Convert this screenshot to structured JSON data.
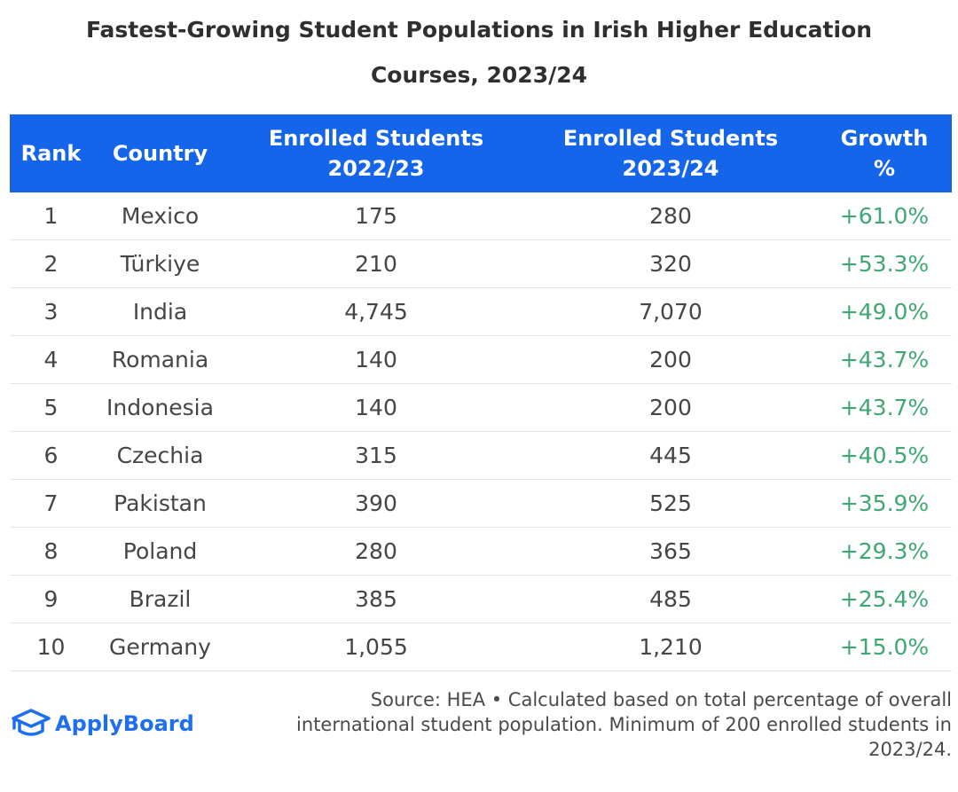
{
  "header": {
    "title_line1": "Fastest-Growing Student Populations in Irish Higher Education",
    "title_line2": "Courses, 2023/24"
  },
  "chart_data": {
    "type": "table",
    "title": "Fastest-Growing Student Populations in Irish Higher Education Courses, 2023/24",
    "columns": [
      {
        "line1": "Rank",
        "line2": ""
      },
      {
        "line1": "Country",
        "line2": ""
      },
      {
        "line1": "Enrolled Students",
        "line2": "2022/23"
      },
      {
        "line1": "Enrolled Students",
        "line2": "2023/24"
      },
      {
        "line1": "Growth",
        "line2": "%"
      }
    ],
    "rows": [
      {
        "rank": "1",
        "country": "Mexico",
        "enrolled_2022_23": "175",
        "enrolled_2023_24": "280",
        "growth": "+61.0%"
      },
      {
        "rank": "2",
        "country": "Türkiye",
        "enrolled_2022_23": "210",
        "enrolled_2023_24": "320",
        "growth": "+53.3%"
      },
      {
        "rank": "3",
        "country": "India",
        "enrolled_2022_23": "4,745",
        "enrolled_2023_24": "7,070",
        "growth": "+49.0%"
      },
      {
        "rank": "4",
        "country": "Romania",
        "enrolled_2022_23": "140",
        "enrolled_2023_24": "200",
        "growth": "+43.7%"
      },
      {
        "rank": "5",
        "country": "Indonesia",
        "enrolled_2022_23": "140",
        "enrolled_2023_24": "200",
        "growth": "+43.7%"
      },
      {
        "rank": "6",
        "country": "Czechia",
        "enrolled_2022_23": "315",
        "enrolled_2023_24": "445",
        "growth": "+40.5%"
      },
      {
        "rank": "7",
        "country": "Pakistan",
        "enrolled_2022_23": "390",
        "enrolled_2023_24": "525",
        "growth": "+35.9%"
      },
      {
        "rank": "8",
        "country": "Poland",
        "enrolled_2022_23": "280",
        "enrolled_2023_24": "365",
        "growth": "+29.3%"
      },
      {
        "rank": "9",
        "country": "Brazil",
        "enrolled_2022_23": "385",
        "enrolled_2023_24": "485",
        "growth": "+25.4%"
      },
      {
        "rank": "10",
        "country": "Germany",
        "enrolled_2022_23": "1,055",
        "enrolled_2023_24": "1,210",
        "growth": "+15.0%"
      }
    ]
  },
  "colors": {
    "header_bg": "#1565ea",
    "growth_text": "#3fa773",
    "logo_blue": "#1e6ff0"
  },
  "footer": {
    "logo_icon": "graduation-cap-icon",
    "logo_text": "ApplyBoard",
    "source_line1": "Source: HEA • Calculated based on total percentage of overall",
    "source_line2": "international student population. Minimum of 200 enrolled students in",
    "source_line3": "2023/24."
  }
}
